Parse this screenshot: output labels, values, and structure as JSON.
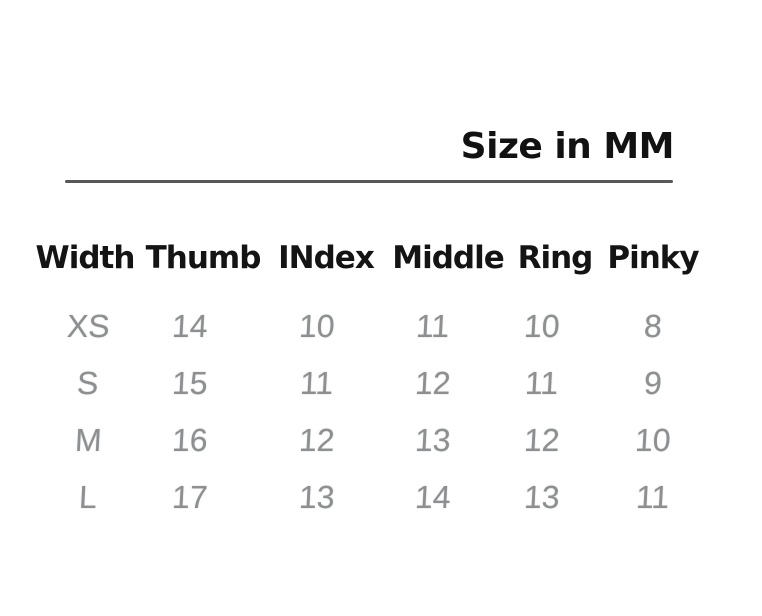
{
  "chart_data": {
    "type": "table",
    "title": "Size in MM",
    "unit": "MM",
    "columns": [
      "Width",
      "Thumb",
      "INdex",
      "Middle",
      "Ring",
      "Pinky"
    ],
    "rows": [
      {
        "label": "XS",
        "values": [
          14,
          10,
          11,
          10,
          8
        ]
      },
      {
        "label": "S",
        "values": [
          15,
          11,
          12,
          11,
          9
        ]
      },
      {
        "label": "M",
        "values": [
          16,
          12,
          13,
          12,
          10
        ]
      },
      {
        "label": "L",
        "values": [
          17,
          13,
          14,
          13,
          11
        ]
      }
    ],
    "layout_hints": {
      "title_position": "top-right",
      "title_underline": true,
      "grid": false,
      "header_style": "bold-black",
      "data_style": "light-gray"
    }
  },
  "colors": {
    "background": "#ffffff",
    "heading_text": "#141414",
    "divider": "#585858",
    "data_text": "#8d8f91"
  }
}
